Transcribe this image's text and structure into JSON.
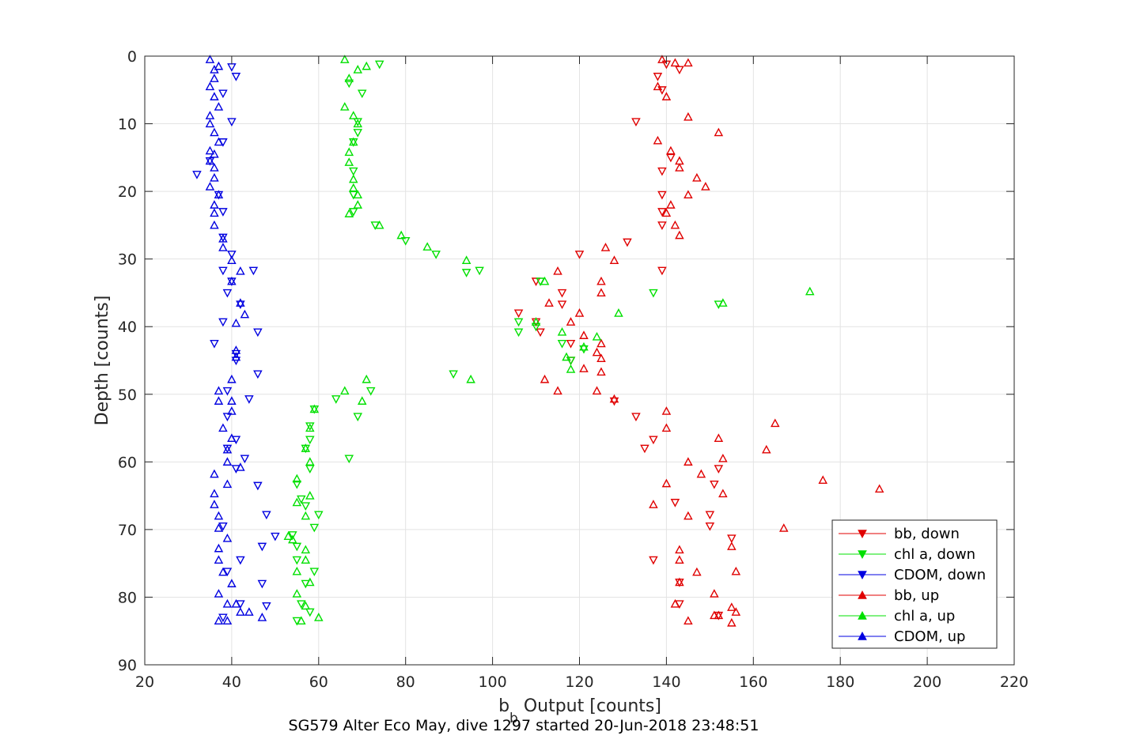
{
  "chart_data": {
    "type": "scatter",
    "title": "",
    "footer": "SG579 Alter Eco May, dive 1297 started 20-Jun-2018 23:48:51",
    "xlabel_main": "b",
    "xlabel_sub": "b",
    "xlabel_rest": " Output [counts]",
    "ylabel": "Depth [counts]",
    "xlim": [
      20,
      220
    ],
    "ylim": [
      0,
      90
    ],
    "y_reversed": true,
    "grid": true,
    "legend_position": "bottom-right",
    "x_ticks": [
      "20",
      "40",
      "60",
      "80",
      "100",
      "120",
      "140",
      "160",
      "180",
      "200",
      "220"
    ],
    "y_ticks": [
      "0",
      "10",
      "20",
      "30",
      "40",
      "50",
      "60",
      "70",
      "80",
      "90"
    ],
    "series": [
      {
        "name": "bb, down",
        "color": "#e00000",
        "marker": "triangle-down",
        "points": [
          [
            140,
            1.2
          ],
          [
            143,
            2
          ],
          [
            138,
            3
          ],
          [
            139,
            5
          ],
          [
            133,
            9.7
          ],
          [
            141,
            15
          ],
          [
            139,
            17
          ],
          [
            139,
            20.5
          ],
          [
            139,
            23
          ],
          [
            139,
            25
          ],
          [
            131,
            27.5
          ],
          [
            120,
            29.3
          ],
          [
            139,
            31.7
          ],
          [
            110,
            33.3
          ],
          [
            116,
            35
          ],
          [
            116,
            36.7
          ],
          [
            106,
            38
          ],
          [
            110,
            39.3
          ],
          [
            111,
            40.8
          ],
          [
            118,
            42.5
          ],
          [
            118,
            45
          ],
          [
            128,
            51
          ],
          [
            133,
            53.3
          ],
          [
            137,
            56.7
          ],
          [
            135,
            58
          ],
          [
            152,
            61
          ],
          [
            151,
            63.3
          ],
          [
            142,
            66
          ],
          [
            150,
            67.8
          ],
          [
            150,
            69.5
          ],
          [
            155,
            71.3
          ],
          [
            137,
            74.5
          ],
          [
            143,
            77.8
          ],
          [
            143,
            81
          ],
          [
            152,
            82.7
          ]
        ]
      },
      {
        "name": "chl a, down",
        "color": "#00e000",
        "marker": "triangle-down",
        "points": [
          [
            74,
            1.2
          ],
          [
            67,
            4
          ],
          [
            70,
            5.5
          ],
          [
            69,
            9.7
          ],
          [
            69,
            11.3
          ],
          [
            68,
            12.7
          ],
          [
            68,
            17
          ],
          [
            68,
            20.5
          ],
          [
            68,
            23
          ],
          [
            73,
            25
          ],
          [
            80,
            27.3
          ],
          [
            87,
            29.3
          ],
          [
            94,
            32
          ],
          [
            97,
            31.7
          ],
          [
            111,
            33.3
          ],
          [
            137,
            35
          ],
          [
            152,
            36.7
          ],
          [
            106,
            39.3
          ],
          [
            106,
            40.8
          ],
          [
            110,
            40
          ],
          [
            116,
            42.5
          ],
          [
            121,
            43.3
          ],
          [
            118,
            45
          ],
          [
            91,
            47
          ],
          [
            72,
            49.5
          ],
          [
            64,
            50.7
          ],
          [
            69,
            53.3
          ],
          [
            59,
            52.2
          ],
          [
            58,
            54.7
          ],
          [
            58,
            56.7
          ],
          [
            57,
            58
          ],
          [
            67,
            59.5
          ],
          [
            58,
            61
          ],
          [
            55,
            63.3
          ],
          [
            56,
            65.5
          ],
          [
            57,
            66.5
          ],
          [
            60,
            67.8
          ],
          [
            59,
            69.7
          ],
          [
            54,
            70.8
          ],
          [
            55,
            72.5
          ],
          [
            55,
            74.5
          ],
          [
            59,
            76.2
          ],
          [
            57,
            78
          ],
          [
            56,
            81
          ],
          [
            58,
            82.2
          ],
          [
            55,
            83.5
          ]
        ]
      },
      {
        "name": "CDOM, down",
        "color": "#0000e0",
        "marker": "triangle-down",
        "points": [
          [
            40,
            1.6
          ],
          [
            41,
            3
          ],
          [
            38,
            5.5
          ],
          [
            40,
            9.7
          ],
          [
            38,
            12.7
          ],
          [
            35,
            15.5
          ],
          [
            32,
            17.5
          ],
          [
            37,
            20.5
          ],
          [
            38,
            23
          ],
          [
            38,
            26.8
          ],
          [
            40,
            29.3
          ],
          [
            38,
            31.7
          ],
          [
            45,
            31.7
          ],
          [
            40,
            33.3
          ],
          [
            39,
            35
          ],
          [
            42,
            36.7
          ],
          [
            38,
            39.3
          ],
          [
            46,
            40.8
          ],
          [
            36,
            42.5
          ],
          [
            41,
            44
          ],
          [
            41,
            45
          ],
          [
            46,
            47
          ],
          [
            39,
            49.5
          ],
          [
            44,
            50.7
          ],
          [
            39,
            53.3
          ],
          [
            41,
            56.7
          ],
          [
            39,
            58
          ],
          [
            43,
            59.5
          ],
          [
            41,
            61
          ],
          [
            46,
            63.5
          ],
          [
            48,
            67.8
          ],
          [
            38,
            69.5
          ],
          [
            50,
            71
          ],
          [
            47,
            72.5
          ],
          [
            42,
            74.5
          ],
          [
            39,
            76.2
          ],
          [
            47,
            78
          ],
          [
            48,
            81.3
          ],
          [
            42,
            81
          ],
          [
            38,
            83
          ]
        ]
      },
      {
        "name": "bb, up",
        "color": "#e00000",
        "marker": "triangle-up",
        "points": [
          [
            139,
            0.5
          ],
          [
            142,
            1
          ],
          [
            145,
            1
          ],
          [
            138,
            4.5
          ],
          [
            140,
            6
          ],
          [
            145,
            9
          ],
          [
            152,
            11.3
          ],
          [
            138,
            12.5
          ],
          [
            141,
            14
          ],
          [
            143,
            15.5
          ],
          [
            143,
            16.5
          ],
          [
            147,
            18
          ],
          [
            149,
            19.3
          ],
          [
            145,
            20.5
          ],
          [
            141,
            22
          ],
          [
            140,
            23.2
          ],
          [
            142,
            25
          ],
          [
            143,
            26.5
          ],
          [
            126,
            28.3
          ],
          [
            128,
            30.2
          ],
          [
            115,
            31.8
          ],
          [
            125,
            33.3
          ],
          [
            125,
            35
          ],
          [
            113,
            36.5
          ],
          [
            120,
            38
          ],
          [
            118,
            39.3
          ],
          [
            121,
            41.3
          ],
          [
            125,
            42.5
          ],
          [
            124,
            43.8
          ],
          [
            125,
            44.7
          ],
          [
            121,
            46.2
          ],
          [
            125,
            46.7
          ],
          [
            112,
            47.8
          ],
          [
            115,
            49.5
          ],
          [
            124,
            49.5
          ],
          [
            128,
            50.7
          ],
          [
            140,
            52.5
          ],
          [
            165,
            54.3
          ],
          [
            140,
            55
          ],
          [
            152,
            56.5
          ],
          [
            163,
            58.2
          ],
          [
            153,
            59.5
          ],
          [
            145,
            60
          ],
          [
            148,
            61.8
          ],
          [
            176,
            62.7
          ],
          [
            189,
            64
          ],
          [
            140,
            63.2
          ],
          [
            153,
            64.7
          ],
          [
            137,
            66.3
          ],
          [
            145,
            68
          ],
          [
            167,
            69.8
          ],
          [
            155,
            72.5
          ],
          [
            143,
            73
          ],
          [
            143,
            74.5
          ],
          [
            156,
            76.2
          ],
          [
            147,
            76.3
          ],
          [
            143,
            77.8
          ],
          [
            151,
            79.5
          ],
          [
            142,
            81
          ],
          [
            155,
            81.5
          ],
          [
            156,
            82.2
          ],
          [
            151,
            82.7
          ],
          [
            152,
            82.7
          ],
          [
            145,
            83.5
          ],
          [
            155,
            83.8
          ]
        ]
      },
      {
        "name": "chl a, up",
        "color": "#00e000",
        "marker": "triangle-up",
        "points": [
          [
            66,
            0.5
          ],
          [
            71,
            1.5
          ],
          [
            69,
            2
          ],
          [
            67,
            3.3
          ],
          [
            66,
            7.5
          ],
          [
            68,
            8.8
          ],
          [
            69,
            10
          ],
          [
            68,
            12.7
          ],
          [
            67,
            14.2
          ],
          [
            67,
            15.7
          ],
          [
            68,
            18.2
          ],
          [
            68,
            19.5
          ],
          [
            69,
            20.5
          ],
          [
            69,
            22
          ],
          [
            67,
            23.3
          ],
          [
            74,
            25
          ],
          [
            79,
            26.5
          ],
          [
            85,
            28.2
          ],
          [
            94,
            30.2
          ],
          [
            112,
            33.3
          ],
          [
            173,
            34.8
          ],
          [
            153,
            36.5
          ],
          [
            129,
            38
          ],
          [
            110,
            39.3
          ],
          [
            116,
            40.8
          ],
          [
            124,
            41.5
          ],
          [
            121,
            43
          ],
          [
            117,
            44.5
          ],
          [
            118,
            46.3
          ],
          [
            95,
            47.8
          ],
          [
            71,
            47.8
          ],
          [
            66,
            49.5
          ],
          [
            70,
            51
          ],
          [
            59,
            52.2
          ],
          [
            58,
            55
          ],
          [
            57,
            58
          ],
          [
            58,
            60
          ],
          [
            55,
            62.5
          ],
          [
            58,
            65
          ],
          [
            55,
            66
          ],
          [
            57,
            68
          ],
          [
            53,
            71
          ],
          [
            54,
            71.5
          ],
          [
            57,
            73
          ],
          [
            57,
            74.5
          ],
          [
            55,
            76.2
          ],
          [
            58,
            77.8
          ],
          [
            55,
            79.5
          ],
          [
            57,
            81.3
          ],
          [
            60,
            83
          ],
          [
            56,
            83.5
          ]
        ]
      },
      {
        "name": "CDOM, up",
        "color": "#0000e0",
        "marker": "triangle-up",
        "points": [
          [
            35,
            0.5
          ],
          [
            37,
            1.5
          ],
          [
            36,
            2
          ],
          [
            36,
            3.3
          ],
          [
            35,
            4.5
          ],
          [
            36,
            6
          ],
          [
            37,
            7.5
          ],
          [
            35,
            8.8
          ],
          [
            35,
            10
          ],
          [
            36,
            11.3
          ],
          [
            37,
            12.7
          ],
          [
            35,
            14
          ],
          [
            36,
            14.5
          ],
          [
            35,
            15.5
          ],
          [
            36,
            16.5
          ],
          [
            36,
            18
          ],
          [
            35,
            19.3
          ],
          [
            37,
            20.5
          ],
          [
            36,
            22
          ],
          [
            36,
            23.2
          ],
          [
            36,
            25
          ],
          [
            38,
            27
          ],
          [
            38,
            28.3
          ],
          [
            40,
            30.2
          ],
          [
            42,
            31.8
          ],
          [
            40,
            33.3
          ],
          [
            42,
            36.5
          ],
          [
            43,
            38.2
          ],
          [
            41,
            39.5
          ],
          [
            41,
            43.5
          ],
          [
            41,
            44.5
          ],
          [
            40,
            47.8
          ],
          [
            37,
            49.5
          ],
          [
            37,
            51
          ],
          [
            40,
            51
          ],
          [
            40,
            52.5
          ],
          [
            38,
            55
          ],
          [
            40,
            56.5
          ],
          [
            39,
            58.2
          ],
          [
            39,
            60
          ],
          [
            42,
            60.8
          ],
          [
            36,
            61.8
          ],
          [
            39,
            63.3
          ],
          [
            36,
            64.7
          ],
          [
            36,
            66.3
          ],
          [
            37,
            68
          ],
          [
            37,
            69.8
          ],
          [
            39,
            71.3
          ],
          [
            37,
            72.8
          ],
          [
            37,
            74.5
          ],
          [
            38,
            76.3
          ],
          [
            40,
            78
          ],
          [
            37,
            79.5
          ],
          [
            39,
            81
          ],
          [
            41,
            81
          ],
          [
            42,
            82.2
          ],
          [
            44,
            82.2
          ],
          [
            47,
            83
          ],
          [
            39,
            83.5
          ],
          [
            37,
            83.5
          ]
        ]
      }
    ]
  }
}
